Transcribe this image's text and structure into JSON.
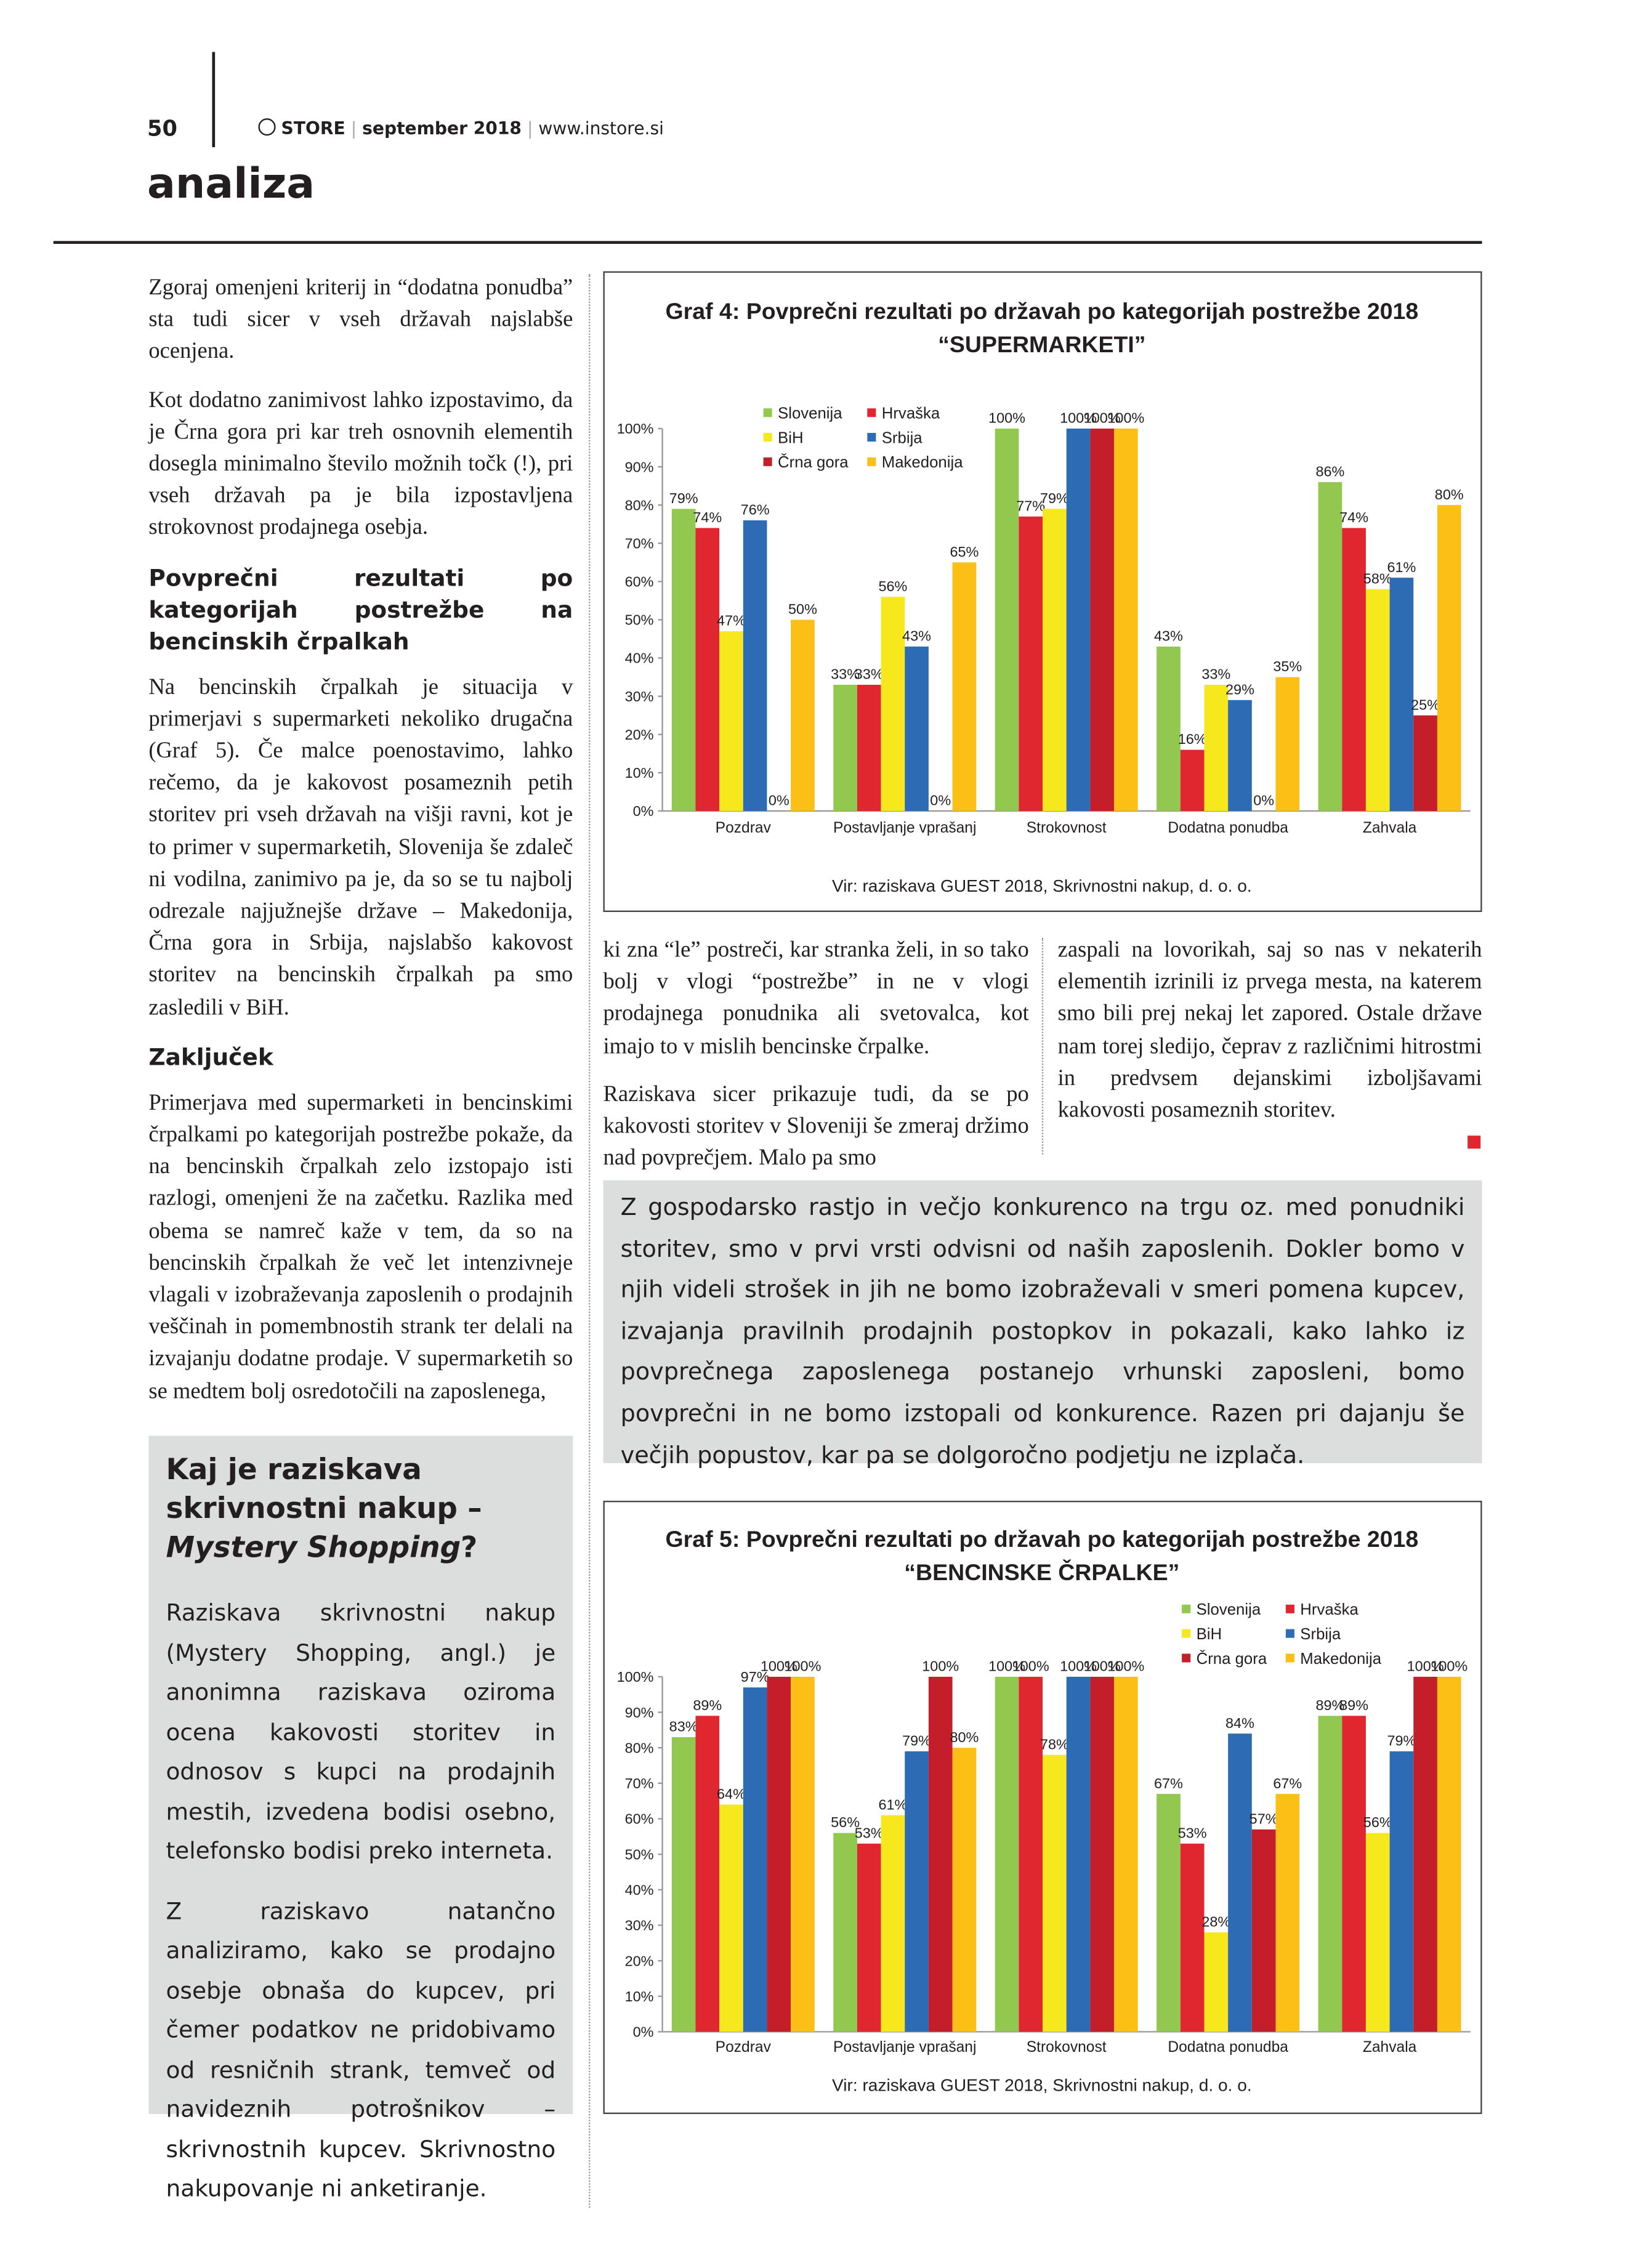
{
  "header": {
    "page_number": "50",
    "logo": "STORE",
    "issue": "september 2018",
    "website": "www.instore.si",
    "section": "analiza"
  },
  "left_column": {
    "p1": "Zgoraj omenjeni kriterij in “dodatna ponudba” sta tudi sicer v vseh državah najslabše ocenjena.",
    "p2": "Kot dodatno zanimivost lahko izpostavimo, da je Črna gora pri kar treh osnovnih elementih dosegla minimalno število možnih točk (!), pri vseh državah pa je bila izpostavljena strokovnost prodajnega osebja.",
    "heading1": "Povprečni rezultati po kategorijah postrežbe na bencinskih črpalkah",
    "p3": "Na bencinskih črpalkah je situacija v primerjavi s supermarketi nekoliko drugačna (Graf 5). Če malce poenostavimo, lahko rečemo, da je kakovost posameznih petih storitev pri vseh državah na višji ravni, kot je to primer v supermarketih, Slovenija še zdaleč ni vodilna, zanimivo pa je, da so se tu najbolj odrezale najjužnejše države – Makedonija, Črna gora in Srbija, najslabšo kakovost storitev na bencinskih črpalkah pa smo zasledili v BiH.",
    "heading2": "Zaključek",
    "p4": "Primerjava med supermarketi in bencinskimi črpalkami po kategorijah postrežbe pokaže, da na bencinskih črpalkah zelo izstopajo isti razlogi, omenjeni že na začetku. Razlika med obema se namreč kaže v tem, da so na bencinskih črpalkah že več let intenzivneje vlagali v izobraževanja zaposlenih o prodajnih veščinah in pomembnostih strank ter delali na izvajanju dodatne prodaje. V supermarketih so se medtem bolj osredotočili na zaposlenega,"
  },
  "middle_columns": {
    "col1_p1": "ki zna “le” postreči, kar stranka želi, in so tako bolj v vlogi “postrežbe” in ne v vlogi prodajnega ponudnika ali svetovalca, kot imajo to v mislih bencinske črpalke.",
    "col1_p2": "Raziskava sicer prikazuje tudi, da se po kakovosti storitev v Sloveniji še zmeraj držimo nad povprečjem. Malo pa smo",
    "col2_p1": "zaspali na lovorikah, saj so nas v nekaterih elementih izrinili iz prvega mesta, na katerem smo bili prej nekaj let zapored. Ostale države nam torej sledijo, čeprav z različnimi hitrostmi in predvsem dejanskimi izboljšavami kakovosti posameznih storitev."
  },
  "quote": "Z gospodarsko rastjo in večjo konkurenco na trgu oz. med ponudniki storitev, smo v prvi vrsti odvisni od naših zaposlenih. Dokler bomo v njih videli strošek in jih ne bomo izobraževali v smeri pomena kupcev, izvajanja pravilnih prodajnih postopkov in pokazali, kako lahko iz povprečnega zaposlenega postanejo vrhunski zaposleni, bomo povprečni in ne bomo izstopali od konkurence. Razen pri dajanju še večjih popustov, kar pa se dolgoročno podjetju ne izplača.",
  "sidebar": {
    "title": "Kaj je raziskava skrivnostni nakup –",
    "title_italic": "Mystery Shopping",
    "title_end": "?",
    "p1": "Raziskava skrivnostni nakup (Mystery Shopping, angl.) je anonimna raziskava oziroma ocena kakovosti storitev in odnosov s kupci na prodajnih mestih, izvedena bodisi osebno, telefonsko bodisi preko interneta.",
    "p2": "Z raziskavo natančno analiziramo, kako se prodajno osebje obnaša do kupcev, pri čemer podatkov ne pridobivamo od resničnih strank, temveč od navideznih potrošnikov – skrivnostnih kupcev. Skrivnostno nakupovanje ni anketiranje."
  },
  "chart_data": [
    {
      "type": "bar",
      "title": "Graf 4: Povprečni rezultati po državah po kategorijah postrežbe 2018",
      "subtitle": "“SUPERMARKETI”",
      "source": "Vir: raziskava GUEST 2018, Skrivnostni nakup, d. o. o.",
      "legend": "top-left",
      "categories": [
        "Pozdrav",
        "Postavljanje vprašanj",
        "Strokovnost",
        "Dodatna ponudba",
        "Zahvala"
      ],
      "ylim": [
        0,
        100
      ],
      "yticks": [
        {
          "value": 0,
          "label": "0%"
        },
        {
          "value": 10,
          "label": "10%"
        },
        {
          "value": 20,
          "label": "20%"
        },
        {
          "value": 30,
          "label": "30%"
        },
        {
          "value": 40,
          "label": "40%"
        },
        {
          "value": 50,
          "label": "50%"
        },
        {
          "value": 60,
          "label": "60%"
        },
        {
          "value": 70,
          "label": "70%"
        },
        {
          "value": 80,
          "label": "80%"
        },
        {
          "value": 90,
          "label": "90%"
        },
        {
          "value": 100,
          "label": "100%"
        }
      ],
      "series": [
        {
          "name": "Slovenija",
          "color": "#92c84f",
          "values": [
            79,
            33,
            100,
            43,
            86
          ],
          "value_labels": [
            "79%",
            "33%",
            "100%",
            "43%",
            "86%"
          ]
        },
        {
          "name": "Hrvaška",
          "color": "#e0262f",
          "values": [
            74,
            33,
            77,
            16,
            74
          ],
          "value_labels": [
            "74%",
            "33%",
            "77%",
            "16%",
            "74%"
          ]
        },
        {
          "name": "BiH",
          "color": "#f6e81d",
          "values": [
            47,
            56,
            79,
            33,
            58
          ],
          "value_labels": [
            "47%",
            "56%",
            "79%",
            "33%",
            "58%"
          ]
        },
        {
          "name": "Srbija",
          "color": "#2d6cb4",
          "values": [
            76,
            43,
            100,
            29,
            61
          ],
          "value_labels": [
            "76%",
            "43%",
            "100%",
            "29%",
            "61%"
          ]
        },
        {
          "name": "Črna gora",
          "color": "#c41e2a",
          "values": [
            0,
            0,
            100,
            0,
            25
          ],
          "value_labels": [
            "0%",
            "0%",
            "100%",
            "0%",
            "25%"
          ]
        },
        {
          "name": "Makedonija",
          "color": "#fbbf16",
          "values": [
            50,
            65,
            100,
            35,
            80
          ],
          "value_labels": [
            "50%",
            "65%",
            "100%",
            "35%",
            "80%"
          ]
        }
      ]
    },
    {
      "type": "bar",
      "title": "Graf 5: Povprečni rezultati po državah po kategorijah postrežbe 2018",
      "subtitle": "“BENCINSKE ČRPALKE”",
      "source": "Vir: raziskava GUEST 2018, Skrivnostni nakup, d. o. o.",
      "legend": "top-right",
      "categories": [
        "Pozdrav",
        "Postavljanje vprašanj",
        "Strokovnost",
        "Dodatna ponudba",
        "Zahvala"
      ],
      "ylim": [
        0,
        100
      ],
      "yticks": [
        {
          "value": 0,
          "label": "0%"
        },
        {
          "value": 10,
          "label": "10%"
        },
        {
          "value": 20,
          "label": "20%"
        },
        {
          "value": 30,
          "label": "30%"
        },
        {
          "value": 40,
          "label": "40%"
        },
        {
          "value": 50,
          "label": "50%"
        },
        {
          "value": 60,
          "label": "60%"
        },
        {
          "value": 70,
          "label": "70%"
        },
        {
          "value": 80,
          "label": "80%"
        },
        {
          "value": 90,
          "label": "90%"
        },
        {
          "value": 100,
          "label": "100%"
        }
      ],
      "series": [
        {
          "name": "Slovenija",
          "color": "#92c84f",
          "values": [
            83,
            56,
            100,
            67,
            89
          ],
          "value_labels": [
            "83%",
            "56%",
            "100%",
            "67%",
            "89%"
          ]
        },
        {
          "name": "Hrvaška",
          "color": "#e0262f",
          "values": [
            89,
            53,
            100,
            53,
            89
          ],
          "value_labels": [
            "89%",
            "53%",
            "100%",
            "53%",
            "89%"
          ]
        },
        {
          "name": "BiH",
          "color": "#f6e81d",
          "values": [
            64,
            61,
            78,
            28,
            56
          ],
          "value_labels": [
            "64%",
            "61%",
            "78%",
            "28%",
            "56%"
          ]
        },
        {
          "name": "Srbija",
          "color": "#2d6cb4",
          "values": [
            97,
            79,
            100,
            84,
            79
          ],
          "value_labels": [
            "97%",
            "79%",
            "100%",
            "84%",
            "79%"
          ]
        },
        {
          "name": "Črna gora",
          "color": "#c41e2a",
          "values": [
            100,
            100,
            100,
            57,
            100
          ],
          "value_labels": [
            "100%",
            "100%",
            "100%",
            "57%",
            "100%"
          ]
        },
        {
          "name": "Makedonija",
          "color": "#fbbf16",
          "values": [
            100,
            80,
            100,
            67,
            100
          ],
          "value_labels": [
            "100%",
            "80%",
            "100%",
            "67%",
            "100%"
          ]
        }
      ]
    }
  ]
}
